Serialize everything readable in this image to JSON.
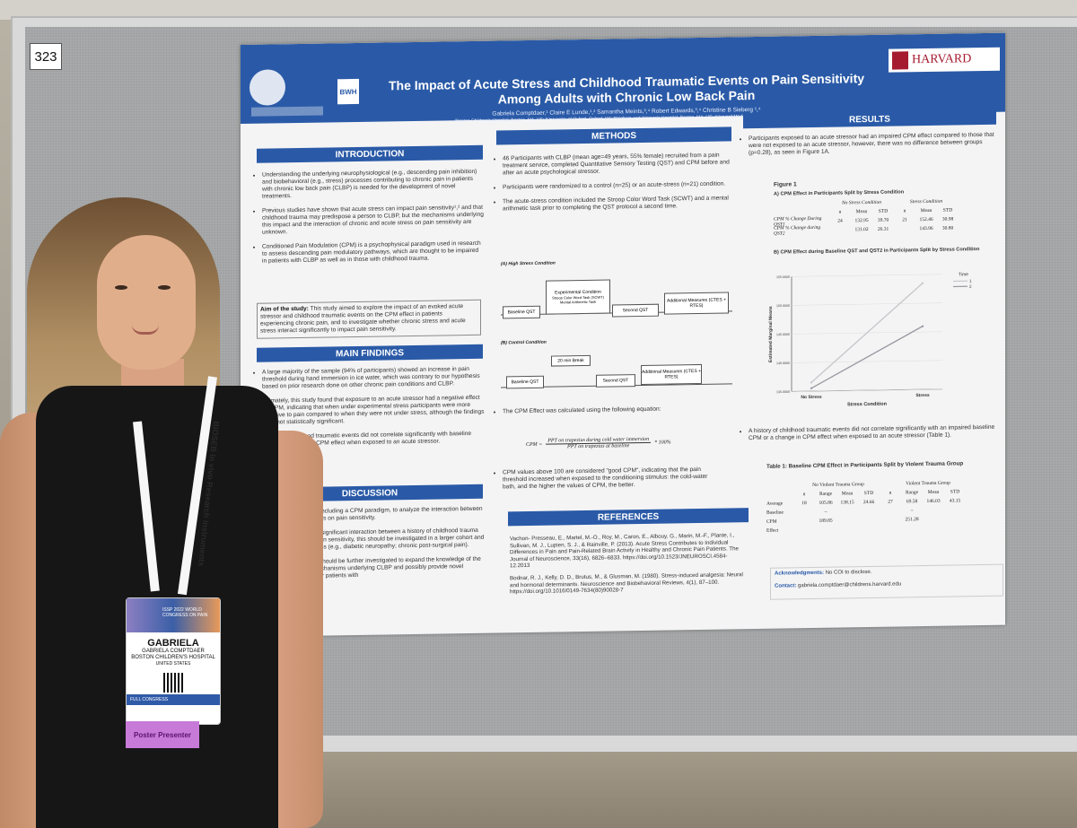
{
  "board_number": "323",
  "poster": {
    "title": "The Impact of Acute Stress and Childhood Traumatic Events on Pain Sensitivity Among Adults with Chronic Low Back Pain",
    "authors": "Gabriela Comptdaer,¹ Claire E Lunde,¹,² Samantha Meints,³,⁴ Robert Edwards,³,⁴ Christine B Sieberg ¹,⁴",
    "affiliations": "¹Boston Children's Hospital, Boston, MA, US; ²University of Oxford, Oxford, UK; ³Brigham and Women's Hospital, Boston, MA, US; ⁴Harvard Medical School, Boston, MA, US",
    "logo_bwh": "BWH",
    "harvard_logo": "HARVARD",
    "introduction": {
      "heading": "INTRODUCTION",
      "bullets": [
        "Understanding the underlying neurophysiological (e.g., descending pain inhibition) and biobehavioral (e.g., stress) processes contributing to chronic pain in patients with chronic low back pain (CLBP) is needed for the development of novel treatments.",
        "Previous studies have shown that acute stress can impact pain sensitivity¹,² and that childhood trauma may predispose a person to CLBP, but the mechanisms underlying this impact and the interaction of chronic and acute stress on pain sensitivity are unknown.",
        "Conditioned Pain Modulation (CPM) is a psychophysical paradigm used in research to assess descending pain modulatory pathways, which are thought to be impaired in patients with CLBP as well as in those with childhood trauma."
      ],
      "aim_label": "Aim of the study:",
      "aim_text": "This study aimed to explore the impact of an evoked acute stressor and childhood traumatic events on the CPM effect in patients experiencing chronic pain, and to investigate whether chronic stress and acute stress interact significantly to impact pain sensitivity."
    },
    "main_findings": {
      "heading": "MAIN FINDINGS",
      "bullets": [
        "A large majority of the sample (94% of participants) showed an increase in pain threshold during hand immersion in ice water, which was contrary to our hypothesis based on prior research done on other chronic pain conditions and CLBP.",
        "Ultimately, this study found that exposure to an acute stressor had a negative effect on CPM, indicating that when under experimental stress participants were more sensitive to pain compared to when they were not under stress, although the findings were not statistically significant.",
        "History of childhood traumatic events did not correlate significantly with baseline CPM or a change in CPM effect when exposed to an acute stressor."
      ]
    },
    "discussion": {
      "heading": "DISCUSSION",
      "bullets": [
        "This study used QST, including a CPM paradigm, to analyze the interaction between acute and chronic stress on pain sensitivity.",
        "This study did not find significant interaction between a history of childhood trauma and acute stress on pain sensitivity, this should be investigated in a larger cohort and in other pain populations (e.g., diabetic neuropathy; chronic post-surgical pain).",
        "Findings of this study should be further investigated to expand the knowledge of the neurophysiological mechanisms underlying CLBP and possibly provide novel treatment modalities for patients with"
      ]
    },
    "methods": {
      "heading": "METHODS",
      "bullets": [
        "46 Participants with CLBP (mean age=49 years, 55% female) recruited from a pain treatment service, completed Quantitative Sensory Testing (QST) and CPM before and after an acute psychological stressor.",
        "Participants were randomized to a control (n=25) or an acute-stress (n=21) condition.",
        "The acute-stress condition included the Stroop Color Word Task (SCWT) and a mental arithmetic task prior to completing the QST protocol a second time."
      ],
      "flow_high_label": "(A) High Stress Condition",
      "flow_control_label": "(B) Control Condition",
      "flow_high": {
        "baseline": "Baseline QST",
        "experimental": "Experimental Condition",
        "experimental_detail": "Stroop Color Word Task (SCWT) Mental Arithmetic Task",
        "second": "Second QST",
        "additional": "Additional Measures (CTES + RTES)"
      },
      "flow_control": {
        "baseline": "Baseline QST",
        "break": "20 min Break",
        "second": "Second QST",
        "additional": "Additional Measures (CTES + RTES)"
      },
      "equation_intro": "The CPM Effect was calculated using the following equation:",
      "equation_lhs": "CPM =",
      "equation_num": "PPT on trapezius during cold water immersion",
      "equation_den": "PPT on trapezius at baseline",
      "equation_rhs": "* 100%",
      "cpm_note": "CPM values above 100 are considered \"good CPM\", indicating that the pain threshold increased when exposed to the conditioning stimulus: the cold-water bath, and the higher the values of CPM, the better."
    },
    "references": {
      "heading": "REFERENCES",
      "items": [
        "Vachon- Presseau, E., Martel, M.-O., Roy, M., Caron, E., Albouy, G., Marin, M.-F., Plante, I., Sullivan, M. J., Lupien, S. J., & Rainville, P. (2013). Acute Stress Contributes to Individual Differences in Pain and Pain-Related Brain Activity in Healthy and Chronic Pain Patients. The Journal of Neuroscience, 33(16), 6826–6833. https://doi.org/10.1523/JNEUROSCI.4584-12.2013",
        "Bodnar, R. J., Kelly, D. D., Brutus, M., & Glusman, M. (1980). Stress-induced analgesia: Neural and hormonal determinants. Neuroscience and Biobehavioral Reviews, 4(1), 87–100. https://doi.org/10.1016/0149-7634(80)90028-7"
      ]
    },
    "results": {
      "heading": "RESULTS",
      "bullet1": "Participants exposed to an acute stressor had an impaired CPM effect compared to those that were not exposed to an acute stressor, however, there was no difference between groups (p=0.28), as seen in Figure 1A.",
      "figure_label": "Figure 1",
      "fig_a_title": "A) CPM Effect in Participants Split by Stress Condition",
      "fig_a_groups": [
        "No Stress Condition",
        "Stress Condition"
      ],
      "fig_a_cols": [
        "n",
        "Mean",
        "STD",
        "n",
        "Mean",
        "STD"
      ],
      "fig_a_rows": [
        {
          "label": "CPM % Change During QST1",
          "cells": [
            "24",
            "132.95",
            "39.70",
            "21",
            "152.46",
            "30.98"
          ]
        },
        {
          "label": "CPM % Change during QST2",
          "cells": [
            "",
            "131.02",
            "26.31",
            "",
            "143.96",
            "30.80"
          ]
        }
      ],
      "fig_b_title": "B) CPM Effect during Baseline QST and QST2 in Participants Split by Stress Condition",
      "bullet2": "A history of childhood traumatic events did not correlate significantly with an impaired baseline CPM or a change in CPM effect when exposed to an acute stressor (Table 1).",
      "table1_title": "Table 1: Baseline CPM Effect in Participants Split by Violent Trauma Group",
      "table1_groups": [
        "No Violent Trauma Group",
        "Violent Trauma Group"
      ],
      "table1_cols": [
        "n",
        "Range",
        "Mean",
        "STD",
        "n",
        "Range",
        "Mean",
        "STD"
      ],
      "table1_rows": [
        {
          "label": "Average",
          "cells": [
            "18",
            "105.86",
            "138.15",
            "24.66",
            "27",
            "69.58",
            "146.03",
            "43.15"
          ]
        },
        {
          "label": "Baseline",
          "cells": [
            "",
            "–",
            "",
            "",
            "",
            "–",
            "",
            ""
          ]
        },
        {
          "label": "CPM",
          "cells": [
            "",
            "189.85",
            "",
            "",
            "",
            "251.28",
            "",
            ""
          ]
        },
        {
          "label": "Effect",
          "cells": [
            "",
            "",
            "",
            "",
            "",
            "",
            "",
            ""
          ]
        }
      ],
      "ack_label": "Acknowledgments:",
      "ack_text": "No COI to disclose.",
      "contact_label": "Contact:",
      "contact_text": "gabriela.comptdaer@childrens.harvard.edu"
    }
  },
  "chart_data": {
    "type": "line",
    "title": "",
    "xlabel": "Stress Condition",
    "ylabel": "Estimated Marginal Means",
    "categories": [
      "No Stress",
      "Stress"
    ],
    "ylim": [
      135,
      155
    ],
    "yticks": [
      "155.0000",
      "150.0000",
      "145.0000",
      "140.0000",
      "135.0000"
    ],
    "legend_title": "Time",
    "series": [
      {
        "name": "1",
        "values": [
          136.5,
          153.5
        ],
        "color": "#c8c8cc"
      },
      {
        "name": "2",
        "values": [
          135.5,
          146.0
        ],
        "color": "#9a9aa2"
      }
    ]
  },
  "badge": {
    "event": "ISSP 2022 WORLD CONGRESS ON PAIN",
    "name": "GABRIELA",
    "fullname": "GABRIELA COMPTDAER",
    "org": "BOSTON CHILDREN'S HOSPITAL",
    "country": "UNITED STATES",
    "category": "FULL CONGRESS",
    "role": "Poster Presenter",
    "lanyard_text": "BIOSEB  In vivo Research Instruments"
  }
}
